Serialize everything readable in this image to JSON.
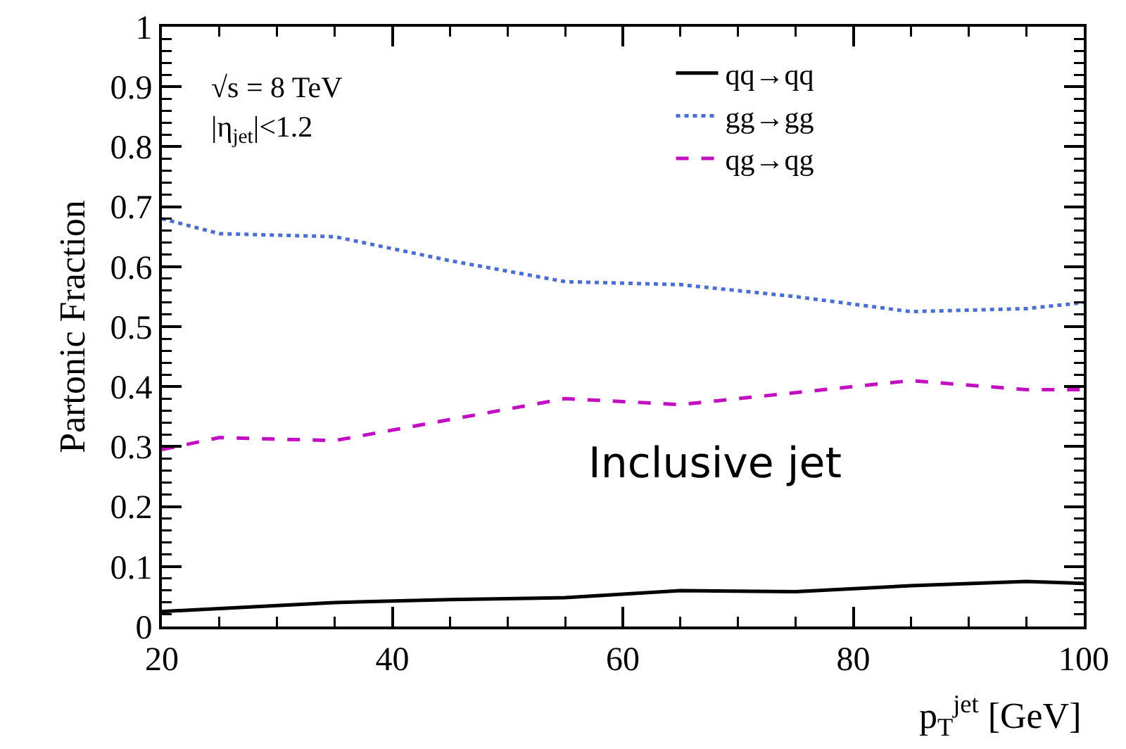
{
  "chart_data": {
    "type": "line",
    "ylabel": "Partonic Fraction",
    "xlabel": "p$_{T}$$^{jet}$ [GeV]",
    "x": [
      20,
      25,
      35,
      45,
      55,
      65,
      75,
      85,
      95,
      100
    ],
    "series": [
      {
        "name": "qq→qq",
        "color": "#000000",
        "line_style": "solid",
        "values": [
          0.025,
          0.03,
          0.04,
          0.045,
          0.048,
          0.06,
          0.058,
          0.068,
          0.075,
          0.072
        ]
      },
      {
        "name": "gg→gg",
        "color": "#4a6fd0",
        "line_style": "dotted",
        "values": [
          0.68,
          0.655,
          0.65,
          0.61,
          0.575,
          0.57,
          0.55,
          0.525,
          0.53,
          0.54
        ]
      },
      {
        "name": "qg→qg",
        "color": "#c010c0",
        "line_style": "dashed",
        "values": [
          0.295,
          0.315,
          0.31,
          0.345,
          0.38,
          0.37,
          0.39,
          0.41,
          0.395,
          0.395
        ]
      }
    ],
    "xlim": [
      20,
      100
    ],
    "xticks": [
      20,
      40,
      60,
      80,
      100
    ],
    "ylim": [
      0,
      1
    ],
    "yticks": [
      0,
      0.1,
      0.2,
      0.3,
      0.4,
      0.5,
      0.6,
      0.7,
      0.8,
      0.9,
      1
    ],
    "grid": false,
    "legend": "top right",
    "marker": "none",
    "annotations": [
      "√s = 8 TeV",
      "|η$_{jet}$|<1.2",
      "Inclusive jet"
    ]
  }
}
